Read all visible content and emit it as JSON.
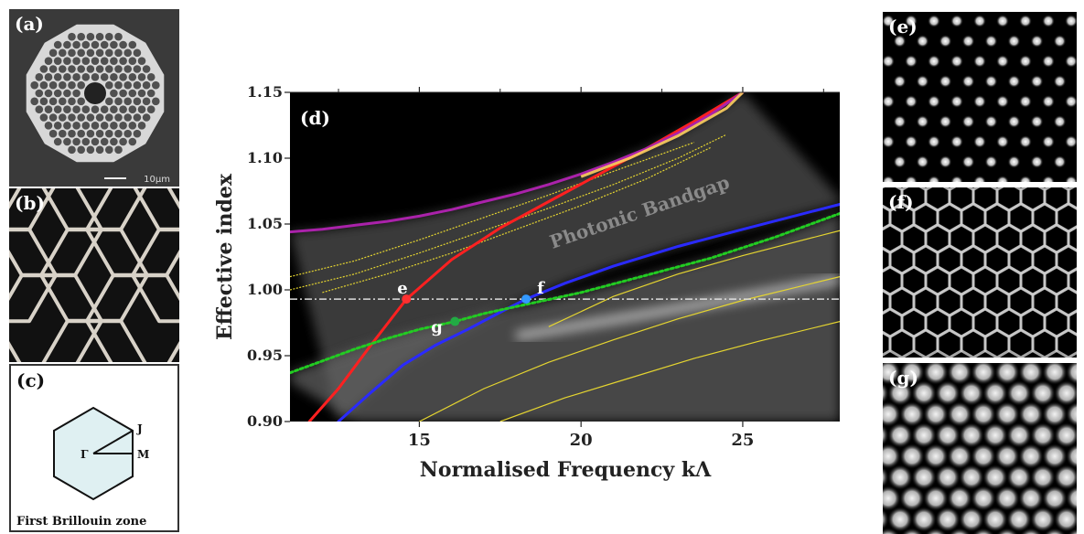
{
  "panels": {
    "a": {
      "label": "(a)",
      "scale_text": "10µm"
    },
    "b": {
      "label": "(b)"
    },
    "c": {
      "label": "(c)",
      "gamma": "Γ",
      "j": "J",
      "m": "M",
      "caption": "First Brillouin zone"
    },
    "e": {
      "label": "(e)"
    },
    "f": {
      "label": "(f)"
    },
    "g": {
      "label": "(g)"
    }
  },
  "chart_data": {
    "type": "line",
    "panel_label": "(d)",
    "xlabel": "Normalised Frequency kΛ",
    "ylabel": "Effective index",
    "xlim": [
      11,
      28
    ],
    "ylim": [
      0.9,
      1.15
    ],
    "xticks": [
      15,
      20,
      25
    ],
    "yticks": [
      "0.90",
      "0.95",
      "1.00",
      "1.05",
      "1.10",
      "1.15"
    ],
    "annotation": "Photonic Bandgap",
    "reference_line_y": 0.993,
    "series": [
      {
        "color": "#ff2020",
        "x": [
          11.6,
          12.5,
          13.5,
          14.6,
          16,
          17.5,
          19,
          20.5,
          22,
          23.5,
          25
        ],
        "y": [
          0.9,
          0.925,
          0.958,
          0.993,
          1.023,
          1.047,
          1.067,
          1.087,
          1.107,
          1.128,
          1.15
        ]
      },
      {
        "color": "#2a2aff",
        "x": [
          12.5,
          13.5,
          14.5,
          15.5,
          16.5,
          17.5,
          18.3,
          19.5,
          21,
          23,
          25,
          28
        ],
        "y": [
          0.9,
          0.922,
          0.943,
          0.958,
          0.97,
          0.983,
          0.993,
          1.005,
          1.018,
          1.033,
          1.046,
          1.065
        ]
      },
      {
        "color": "#22cc22",
        "dashed": true,
        "x": [
          11,
          12,
          13,
          14,
          15,
          16.1,
          17,
          18.5,
          20,
          22,
          24,
          26,
          28
        ],
        "y": [
          0.937,
          0.946,
          0.955,
          0.963,
          0.97,
          0.976,
          0.982,
          0.99,
          0.998,
          1.011,
          1.024,
          1.04,
          1.058
        ]
      },
      {
        "color": "#aa22aa",
        "x": [
          11,
          12,
          13,
          14,
          15,
          16,
          17,
          18,
          19,
          20,
          21,
          22,
          23,
          24,
          25
        ],
        "y": [
          1.044,
          1.046,
          1.049,
          1.052,
          1.056,
          1.061,
          1.067,
          1.073,
          1.08,
          1.088,
          1.097,
          1.107,
          1.119,
          1.133,
          1.15
        ]
      }
    ],
    "points": [
      {
        "label": "e",
        "x": 14.6,
        "y": 0.993,
        "color": "#ff3030"
      },
      {
        "label": "f",
        "x": 18.3,
        "y": 0.993,
        "color": "#3399ff"
      },
      {
        "label": "g",
        "x": 16.1,
        "y": 0.976,
        "color": "#22aa44"
      }
    ]
  }
}
